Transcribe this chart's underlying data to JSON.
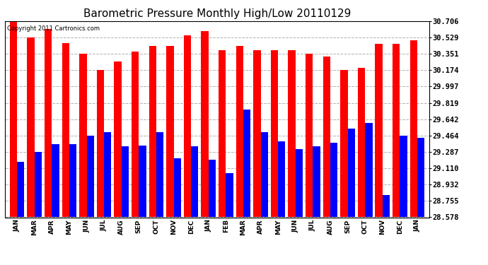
{
  "title": "Barometric Pressure Monthly High/Low 20110129",
  "copyright": "Copyright 2011 Cartronics.com",
  "months": [
    "JAN",
    "MAR",
    "APR",
    "MAY",
    "JUN",
    "JUL",
    "AUG",
    "SEP",
    "OCT",
    "NOV",
    "DEC",
    "JAN",
    "FEB",
    "MAR",
    "APR",
    "MAY",
    "JUN",
    "JUL",
    "AUG",
    "SEP",
    "OCT",
    "NOV",
    "DEC",
    "JAN"
  ],
  "highs": [
    30.706,
    30.529,
    30.618,
    30.47,
    30.351,
    30.174,
    30.27,
    30.38,
    30.44,
    30.44,
    30.55,
    30.6,
    30.39,
    30.44,
    30.39,
    30.39,
    30.39,
    30.351,
    30.32,
    30.174,
    30.2,
    30.46,
    30.46,
    30.5
  ],
  "lows": [
    29.18,
    29.287,
    29.37,
    29.37,
    29.464,
    29.5,
    29.35,
    29.36,
    29.5,
    29.22,
    29.35,
    29.2,
    29.06,
    29.75,
    29.5,
    29.4,
    29.32,
    29.35,
    29.39,
    29.54,
    29.6,
    28.82,
    29.464,
    29.44
  ],
  "ymin": 28.578,
  "ymax": 30.706,
  "yticks": [
    30.706,
    30.529,
    30.351,
    30.174,
    29.997,
    29.819,
    29.642,
    29.464,
    29.287,
    29.11,
    28.932,
    28.755,
    28.578
  ],
  "bar_color_high": "#ff0000",
  "bar_color_low": "#0000ff",
  "bg_color": "#ffffff",
  "grid_color": "#b0b0b0",
  "title_fontsize": 11,
  "bar_width": 0.42,
  "figure_width": 6.9,
  "figure_height": 3.75,
  "dpi": 100
}
